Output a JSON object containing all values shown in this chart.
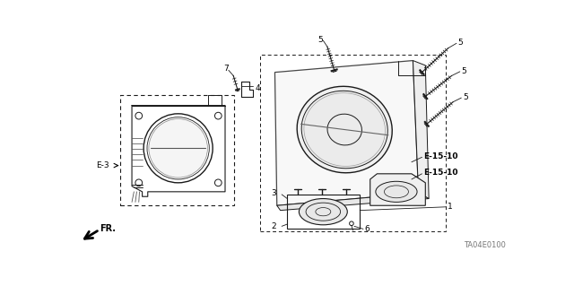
{
  "bg_color": "#ffffff",
  "diagram_code": "TA04E0100",
  "lc": "#1a1a1a",
  "labels": {
    "E3": "E-3",
    "E15_10_upper": "E-15-10",
    "E15_10_lower": "E-15-10",
    "FR": "FR.",
    "num1": "1",
    "num2": "2",
    "num3": "3",
    "num4": "4",
    "num5": "5",
    "num6": "6",
    "num7": "7"
  }
}
